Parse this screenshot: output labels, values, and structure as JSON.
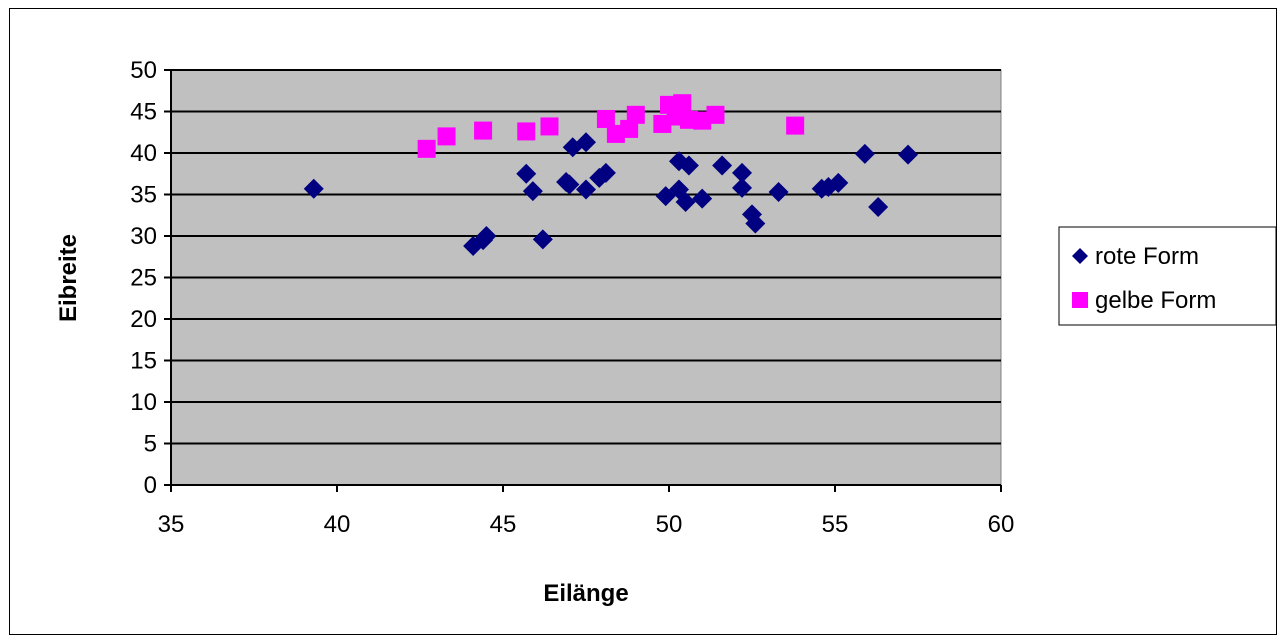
{
  "chart_data": {
    "type": "scatter",
    "title": "",
    "xlabel": "Eilänge",
    "ylabel": "Eibreite",
    "xlim": [
      35,
      60
    ],
    "ylim": [
      0,
      50
    ],
    "x_ticks": [
      35,
      40,
      45,
      50,
      55,
      60
    ],
    "y_ticks": [
      0,
      5,
      10,
      15,
      20,
      25,
      30,
      35,
      40,
      45,
      50
    ],
    "grid": "horizontal",
    "plot_background": "#c0c0c0",
    "legend_position": "right",
    "series": [
      {
        "name": "rote Form",
        "marker": "diamond",
        "color": "#000080",
        "points": [
          [
            39.3,
            35.7
          ],
          [
            44.1,
            28.8
          ],
          [
            44.4,
            29.5
          ],
          [
            44.5,
            30.0
          ],
          [
            45.7,
            37.5
          ],
          [
            45.9,
            35.4
          ],
          [
            46.2,
            29.6
          ],
          [
            46.9,
            36.5
          ],
          [
            47.0,
            36.2
          ],
          [
            47.1,
            40.7
          ],
          [
            47.5,
            41.3
          ],
          [
            47.5,
            35.6
          ],
          [
            47.9,
            37.0
          ],
          [
            48.1,
            37.6
          ],
          [
            49.9,
            34.8
          ],
          [
            50.3,
            39.0
          ],
          [
            50.3,
            35.6
          ],
          [
            50.5,
            34.1
          ],
          [
            50.6,
            38.5
          ],
          [
            51.0,
            34.5
          ],
          [
            51.6,
            38.5
          ],
          [
            52.2,
            37.6
          ],
          [
            52.2,
            35.8
          ],
          [
            52.5,
            32.6
          ],
          [
            52.6,
            31.5
          ],
          [
            53.3,
            35.3
          ],
          [
            54.6,
            35.7
          ],
          [
            54.8,
            35.9
          ],
          [
            55.1,
            36.4
          ],
          [
            55.9,
            39.9
          ],
          [
            56.3,
            33.5
          ],
          [
            57.2,
            39.8
          ]
        ]
      },
      {
        "name": "gelbe Form",
        "marker": "square",
        "color": "#ff00ff",
        "points": [
          [
            42.7,
            40.5
          ],
          [
            43.3,
            42.0
          ],
          [
            44.4,
            42.7
          ],
          [
            45.7,
            42.6
          ],
          [
            46.4,
            43.2
          ],
          [
            48.1,
            44.1
          ],
          [
            48.4,
            42.3
          ],
          [
            48.8,
            42.9
          ],
          [
            49.0,
            44.6
          ],
          [
            49.8,
            43.5
          ],
          [
            50.0,
            45.8
          ],
          [
            50.2,
            44.4
          ],
          [
            50.4,
            46.0
          ],
          [
            50.6,
            44.0
          ],
          [
            51.0,
            43.9
          ],
          [
            51.4,
            44.6
          ],
          [
            53.8,
            43.3
          ]
        ]
      }
    ]
  }
}
